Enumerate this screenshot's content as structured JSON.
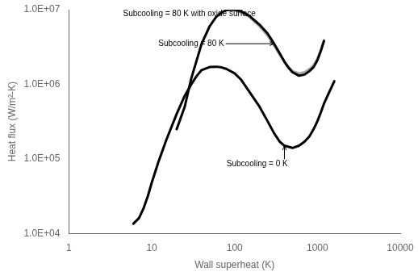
{
  "chart_data": {
    "type": "line",
    "xlabel": "Wall superheat (K)",
    "ylabel": "Heat flux (W/m²-K)",
    "log": true,
    "grid": false,
    "xlim": [
      1,
      10000
    ],
    "ylim": [
      10000.0,
      10000000.0
    ],
    "xticks": [
      1,
      10,
      100,
      1000,
      10000
    ],
    "yticks": [
      {
        "value": 10000.0,
        "label": "1.0E+04"
      },
      {
        "value": 100000.0,
        "label": "1.0E+05"
      },
      {
        "value": 1000000.0,
        "label": "1.0E+06"
      },
      {
        "value": 10000000.0,
        "label": "1.0E+07"
      }
    ],
    "series": [
      {
        "color": "#000000",
        "x": [
          6,
          7,
          8,
          9,
          10,
          12,
          15,
          20,
          25,
          30,
          35,
          40,
          50,
          60,
          70,
          80,
          100,
          120,
          150,
          200,
          250,
          300,
          350,
          400,
          500,
          600,
          700,
          800,
          900,
          1000,
          1100,
          1200,
          1400,
          1600
        ],
        "values": [
          13500.0,
          16000.0,
          22000.0,
          32000.0,
          48000.0,
          90000.0,
          180000.0,
          400000.0,
          700000.0,
          1000000.0,
          1300000.0,
          1550000.0,
          1700000.0,
          1720000.0,
          1680000.0,
          1600000.0,
          1400000.0,
          1150000.0,
          800000.0,
          500000.0,
          320000.0,
          220000.0,
          170000.0,
          150000.0,
          140000.0,
          150000.0,
          170000.0,
          200000.0,
          250000.0,
          320000.0,
          420000.0,
          550000.0,
          800000.0,
          1100000.0
        ]
      },
      {
        "color": "#000000",
        "x": [
          20,
          25,
          30,
          40,
          50,
          60,
          70,
          80,
          90,
          100,
          120,
          150,
          200,
          250,
          300,
          350,
          400,
          450,
          500,
          600,
          700,
          800,
          900,
          1000,
          1100,
          1200
        ],
        "values": [
          250000.0,
          500000.0,
          1200000.0,
          3500000.0,
          6000000.0,
          8000000.0,
          9200000.0,
          9900000.0,
          10000000.0,
          10000000.0,
          9500000.0,
          8300000.0,
          6300000.0,
          4800000.0,
          3500000.0,
          2600000.0,
          2000000.0,
          1650000.0,
          1450000.0,
          1300000.0,
          1350000.0,
          1500000.0,
          1700000.0,
          2100000.0,
          2800000.0,
          3800000.0
        ]
      },
      {
        "color": "#aaaaaa",
        "x": [
          80,
          90,
          100,
          120,
          150,
          200,
          250,
          300,
          350,
          400,
          450,
          500,
          600,
          700,
          800,
          900,
          1000,
          1100,
          1200
        ],
        "values": [
          9850000.0,
          9950000.0,
          9800000.0,
          9200000.0,
          8000000.0,
          6000000.0,
          4500000.0,
          3300000.0,
          2500000.0,
          2000000.0,
          1700000.0,
          1500000.0,
          1400000.0,
          1450000.0,
          1600000.0,
          1800000.0,
          2200000.0,
          2900000.0,
          3900000.0
        ]
      }
    ],
    "annotations": [
      {
        "text": "Subcooling = 80 K with oxide surface",
        "x": 100,
        "y": 9800000.0,
        "text_x": 4.5,
        "text_y": 8800000.0
      },
      {
        "text": "Subcooling = 80 K",
        "x": 300,
        "y": 3500000.0,
        "text_x": 12,
        "text_y": 3500000.0
      },
      {
        "text": "Subcooling = 0 K",
        "x": 400,
        "y": 150000.0,
        "text_x": 80,
        "text_y": 85000.0
      }
    ]
  }
}
